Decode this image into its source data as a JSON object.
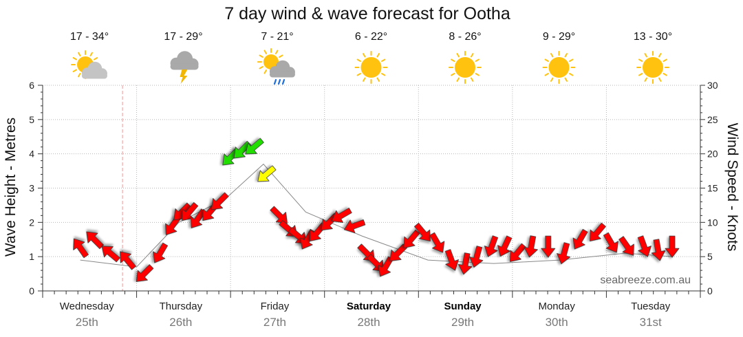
{
  "title": "7 day wind & wave forecast for Ootha",
  "watermark": "seabreeze.com.au",
  "days": [
    {
      "name": "Wednesday",
      "date": "25th",
      "temp": "17 - 34°",
      "icon": "partly-cloudy-icon",
      "bold": false
    },
    {
      "name": "Thursday",
      "date": "26th",
      "temp": "17 - 29°",
      "icon": "thunderstorm-icon",
      "bold": false
    },
    {
      "name": "Friday",
      "date": "27th",
      "temp": "7 - 21°",
      "icon": "showers-icon",
      "bold": false
    },
    {
      "name": "Saturday",
      "date": "28th",
      "temp": "6 - 22°",
      "icon": "sunny-icon",
      "bold": true
    },
    {
      "name": "Sunday",
      "date": "29th",
      "temp": "8 - 26°",
      "icon": "sunny-icon",
      "bold": true
    },
    {
      "name": "Monday",
      "date": "30th",
      "temp": "9 - 29°",
      "icon": "sunny-icon",
      "bold": false
    },
    {
      "name": "Tuesday",
      "date": "31st",
      "temp": "13 - 30°",
      "icon": "sunny-icon",
      "bold": false
    }
  ],
  "colors": {
    "calm": "#ff0000",
    "moderate": "#ffff00",
    "strong": "#22dd00",
    "now_line": "#f4a6a6",
    "sun": "#ffc20e",
    "cloud": "#c4c4c4"
  },
  "chart_data": {
    "type": "line",
    "title": "7 day wind & wave forecast for Ootha",
    "ylabel": "Wave Height - Metres",
    "y2label": "Wind Speed - Knots",
    "ylim": [
      0,
      6
    ],
    "y2lim": [
      0,
      30
    ],
    "yticks": [
      0,
      1,
      2,
      3,
      4,
      5,
      6
    ],
    "y2ticks": [
      0,
      5,
      10,
      15,
      20,
      25,
      30
    ],
    "grid": true,
    "now_marker_day": 0.85,
    "wind_speed_series": {
      "name": "Wind Speed",
      "x_days": [
        0.4,
        0.55,
        0.72,
        0.9,
        1.08,
        1.25,
        1.38,
        1.48,
        1.56,
        1.65,
        1.78,
        1.88,
        2.0,
        2.12,
        2.25,
        2.38,
        2.52,
        2.62,
        2.72,
        2.82,
        2.92,
        3.05,
        3.18,
        3.32,
        3.45,
        3.55,
        3.65,
        3.78,
        3.92,
        4.05,
        4.2,
        4.35,
        4.5,
        4.62,
        4.78,
        4.92,
        5.05,
        5.2,
        5.38,
        5.55,
        5.72,
        5.9,
        6.05,
        6.22,
        6.4,
        6.55,
        6.7
      ],
      "knots": [
        6.3,
        7.5,
        5.5,
        4.5,
        2.5,
        5.5,
        9.5,
        11.5,
        11.5,
        10.5,
        11.5,
        13,
        19.5,
        20.5,
        21,
        17,
        11,
        9,
        8,
        7.5,
        8.5,
        10,
        11,
        9.5,
        5.5,
        4,
        3.5,
        5.5,
        7.5,
        8.5,
        7,
        4.5,
        4,
        5,
        6.5,
        6.5,
        5.5,
        6.5,
        6.5,
        5.5,
        7.5,
        8.5,
        7,
        6.5,
        6.5,
        6,
        6.5
      ],
      "direction_deg": [
        125,
        135,
        140,
        130,
        225,
        240,
        235,
        225,
        230,
        235,
        230,
        225,
        225,
        225,
        220,
        220,
        315,
        320,
        320,
        240,
        230,
        225,
        210,
        200,
        315,
        315,
        240,
        225,
        230,
        310,
        300,
        290,
        260,
        255,
        250,
        245,
        230,
        260,
        270,
        255,
        240,
        230,
        300,
        305,
        290,
        280,
        270
      ]
    },
    "wave_height_series": {
      "name": "Wave Height",
      "x_days": [
        0.4,
        1.0,
        1.45,
        1.95,
        2.35,
        2.8,
        3.4,
        4.1,
        4.8,
        5.5,
        6.2,
        6.7
      ],
      "metres": [
        0.9,
        0.7,
        2.0,
        2.7,
        3.7,
        2.3,
        1.6,
        0.9,
        0.8,
        0.9,
        1.1,
        1.0
      ]
    }
  }
}
